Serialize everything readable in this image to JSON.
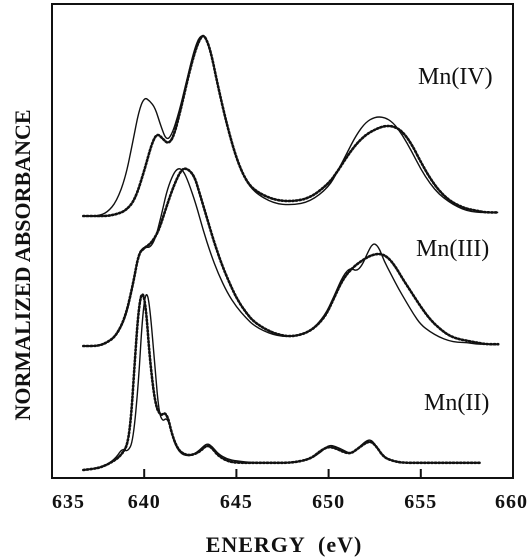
{
  "chart_data": {
    "type": "line",
    "xlabel": "ENERGY  (eV)",
    "ylabel": "NORMALIZED ABSORBANCE",
    "xlim": [
      635,
      660
    ],
    "xticks": [
      635,
      640,
      645,
      650,
      655,
      660
    ],
    "y_tick_labels": false,
    "grid": false,
    "legend": "none",
    "annotations": [
      "Mn(IV)",
      "Mn(III)",
      "Mn(II)"
    ],
    "offset_note": "spectra vertically offset; arbitrary units",
    "series": [
      {
        "group": "Mn(IV)",
        "style": "solid",
        "x": [
          636.7,
          637.5,
          638.0,
          638.5,
          639.0,
          639.4,
          639.7,
          640.0,
          640.3,
          640.6,
          640.9,
          641.2,
          641.5,
          641.9,
          642.3,
          642.7,
          643.0,
          643.3,
          643.6,
          644.0,
          644.5,
          645.0,
          645.5,
          646.0,
          647.0,
          648.0,
          649.0,
          650.0,
          650.5,
          651.0,
          651.5,
          652.0,
          652.5,
          653.0,
          653.5,
          654.0,
          654.5,
          655.0,
          655.5,
          656.0,
          656.5,
          657.0,
          657.5,
          658.0,
          658.5,
          659.2
        ],
        "y": [
          0.0,
          0.0,
          0.02,
          0.08,
          0.22,
          0.42,
          0.58,
          0.66,
          0.64,
          0.6,
          0.5,
          0.42,
          0.45,
          0.58,
          0.75,
          0.92,
          1.0,
          1.0,
          0.92,
          0.72,
          0.5,
          0.32,
          0.2,
          0.13,
          0.07,
          0.06,
          0.08,
          0.16,
          0.25,
          0.35,
          0.45,
          0.52,
          0.55,
          0.55,
          0.52,
          0.45,
          0.36,
          0.26,
          0.18,
          0.12,
          0.08,
          0.05,
          0.03,
          0.02,
          0.02,
          0.02
        ]
      },
      {
        "group": "Mn(IV)",
        "style": "dotted",
        "x": [
          636.7,
          637.5,
          638.0,
          638.5,
          639.0,
          639.5,
          640.0,
          640.4,
          640.7,
          641.0,
          641.3,
          641.6,
          642.0,
          642.4,
          642.8,
          643.1,
          643.3,
          643.6,
          644.0,
          644.5,
          645.0,
          645.5,
          646.0,
          647.0,
          648.0,
          649.0,
          650.0,
          650.5,
          651.0,
          651.5,
          652.0,
          652.5,
          653.0,
          653.5,
          654.0,
          654.5,
          655.0,
          655.5,
          656.0,
          656.5,
          657.0,
          657.5,
          658.0,
          658.5,
          659.2
        ],
        "y": [
          0.0,
          0.0,
          0.0,
          0.01,
          0.03,
          0.09,
          0.25,
          0.4,
          0.46,
          0.43,
          0.4,
          0.44,
          0.6,
          0.78,
          0.93,
          1.0,
          1.0,
          0.92,
          0.72,
          0.5,
          0.32,
          0.2,
          0.14,
          0.09,
          0.08,
          0.1,
          0.18,
          0.25,
          0.33,
          0.4,
          0.45,
          0.48,
          0.5,
          0.5,
          0.47,
          0.4,
          0.3,
          0.21,
          0.14,
          0.09,
          0.06,
          0.04,
          0.03,
          0.02,
          0.02
        ]
      },
      {
        "group": "Mn(III)",
        "style": "solid",
        "x": [
          636.7,
          637.5,
          638.0,
          638.5,
          639.0,
          639.4,
          639.7,
          640.0,
          640.3,
          640.6,
          640.9,
          641.2,
          641.5,
          641.8,
          642.1,
          642.4,
          642.8,
          643.2,
          643.6,
          644.0,
          644.5,
          645.0,
          645.5,
          646.0,
          647.0,
          648.0,
          649.0,
          649.8,
          650.3,
          650.8,
          651.2,
          651.5,
          651.8,
          652.1,
          652.4,
          652.7,
          653.0,
          653.4,
          653.8,
          654.2,
          654.6,
          655.0,
          655.5,
          656.0,
          656.5,
          657.0,
          657.5,
          658.0,
          658.5,
          659.2
        ],
        "y": [
          0.0,
          0.0,
          0.02,
          0.06,
          0.16,
          0.34,
          0.52,
          0.56,
          0.55,
          0.6,
          0.72,
          0.86,
          0.95,
          1.0,
          0.99,
          0.92,
          0.8,
          0.65,
          0.52,
          0.41,
          0.3,
          0.22,
          0.16,
          0.11,
          0.06,
          0.05,
          0.08,
          0.17,
          0.28,
          0.4,
          0.44,
          0.42,
          0.45,
          0.52,
          0.58,
          0.56,
          0.48,
          0.4,
          0.32,
          0.25,
          0.18,
          0.12,
          0.08,
          0.05,
          0.03,
          0.02,
          0.02,
          0.01,
          0.01,
          0.01
        ]
      },
      {
        "group": "Mn(III)",
        "style": "dotted",
        "x": [
          636.7,
          637.5,
          638.0,
          638.5,
          639.0,
          639.4,
          639.7,
          640.0,
          640.4,
          640.8,
          641.2,
          641.6,
          642.0,
          642.3,
          642.7,
          643.0,
          643.4,
          643.8,
          644.2,
          644.6,
          645.0,
          645.5,
          646.0,
          647.0,
          648.0,
          649.0,
          649.8,
          650.3,
          650.8,
          651.3,
          651.8,
          652.3,
          652.8,
          653.2,
          653.6,
          654.0,
          654.5,
          655.0,
          655.5,
          656.0,
          656.5,
          657.0,
          657.5,
          658.0,
          658.5,
          659.2
        ],
        "y": [
          0.0,
          0.0,
          0.02,
          0.06,
          0.17,
          0.35,
          0.52,
          0.55,
          0.58,
          0.65,
          0.78,
          0.9,
          0.99,
          1.0,
          0.96,
          0.86,
          0.72,
          0.58,
          0.46,
          0.36,
          0.27,
          0.19,
          0.13,
          0.07,
          0.05,
          0.08,
          0.16,
          0.27,
          0.38,
          0.44,
          0.48,
          0.51,
          0.52,
          0.5,
          0.45,
          0.38,
          0.3,
          0.22,
          0.15,
          0.1,
          0.06,
          0.04,
          0.03,
          0.02,
          0.01,
          0.01
        ]
      },
      {
        "group": "Mn(II)",
        "style": "solid",
        "x": [
          636.7,
          637.5,
          638.0,
          638.5,
          638.8,
          639.1,
          639.4,
          639.7,
          639.9,
          640.1,
          640.3,
          640.6,
          640.8,
          641.0,
          641.2,
          641.4,
          641.6,
          641.9,
          642.2,
          642.6,
          643.0,
          643.4,
          643.7,
          644.0,
          644.5,
          645.0,
          646.0,
          647.0,
          648.0,
          649.0,
          649.6,
          650.0,
          650.4,
          650.8,
          651.2,
          651.6,
          652.0,
          652.3,
          652.6,
          653.0,
          653.5,
          654.0,
          655.0,
          656.0,
          657.0,
          658.2
        ],
        "y": [
          0.0,
          0.01,
          0.03,
          0.07,
          0.12,
          0.1,
          0.16,
          0.5,
          0.85,
          1.0,
          0.92,
          0.55,
          0.32,
          0.27,
          0.29,
          0.25,
          0.16,
          0.1,
          0.08,
          0.08,
          0.11,
          0.15,
          0.13,
          0.09,
          0.06,
          0.05,
          0.04,
          0.04,
          0.04,
          0.06,
          0.1,
          0.14,
          0.13,
          0.11,
          0.09,
          0.12,
          0.16,
          0.17,
          0.13,
          0.07,
          0.05,
          0.04,
          0.04,
          0.04,
          0.04,
          0.04
        ]
      },
      {
        "group": "Mn(II)",
        "style": "dotted",
        "x": [
          636.7,
          637.5,
          638.0,
          638.5,
          638.8,
          639.1,
          639.3,
          639.5,
          639.7,
          639.9,
          640.1,
          640.3,
          640.6,
          640.9,
          641.1,
          641.3,
          641.5,
          641.8,
          642.1,
          642.5,
          643.0,
          643.4,
          643.7,
          644.0,
          644.5,
          645.0,
          646.0,
          647.0,
          648.0,
          649.0,
          649.6,
          650.0,
          650.4,
          650.8,
          651.2,
          651.6,
          652.0,
          652.3,
          652.6,
          653.0,
          653.5,
          654.0,
          655.0,
          656.0,
          657.0,
          658.2
        ],
        "y": [
          0.0,
          0.01,
          0.03,
          0.06,
          0.09,
          0.14,
          0.3,
          0.62,
          0.9,
          1.0,
          0.9,
          0.62,
          0.36,
          0.3,
          0.32,
          0.29,
          0.2,
          0.12,
          0.09,
          0.08,
          0.1,
          0.14,
          0.12,
          0.08,
          0.05,
          0.04,
          0.04,
          0.04,
          0.04,
          0.06,
          0.11,
          0.13,
          0.12,
          0.1,
          0.09,
          0.12,
          0.15,
          0.16,
          0.13,
          0.07,
          0.05,
          0.04,
          0.04,
          0.04,
          0.04,
          0.04
        ]
      }
    ]
  }
}
